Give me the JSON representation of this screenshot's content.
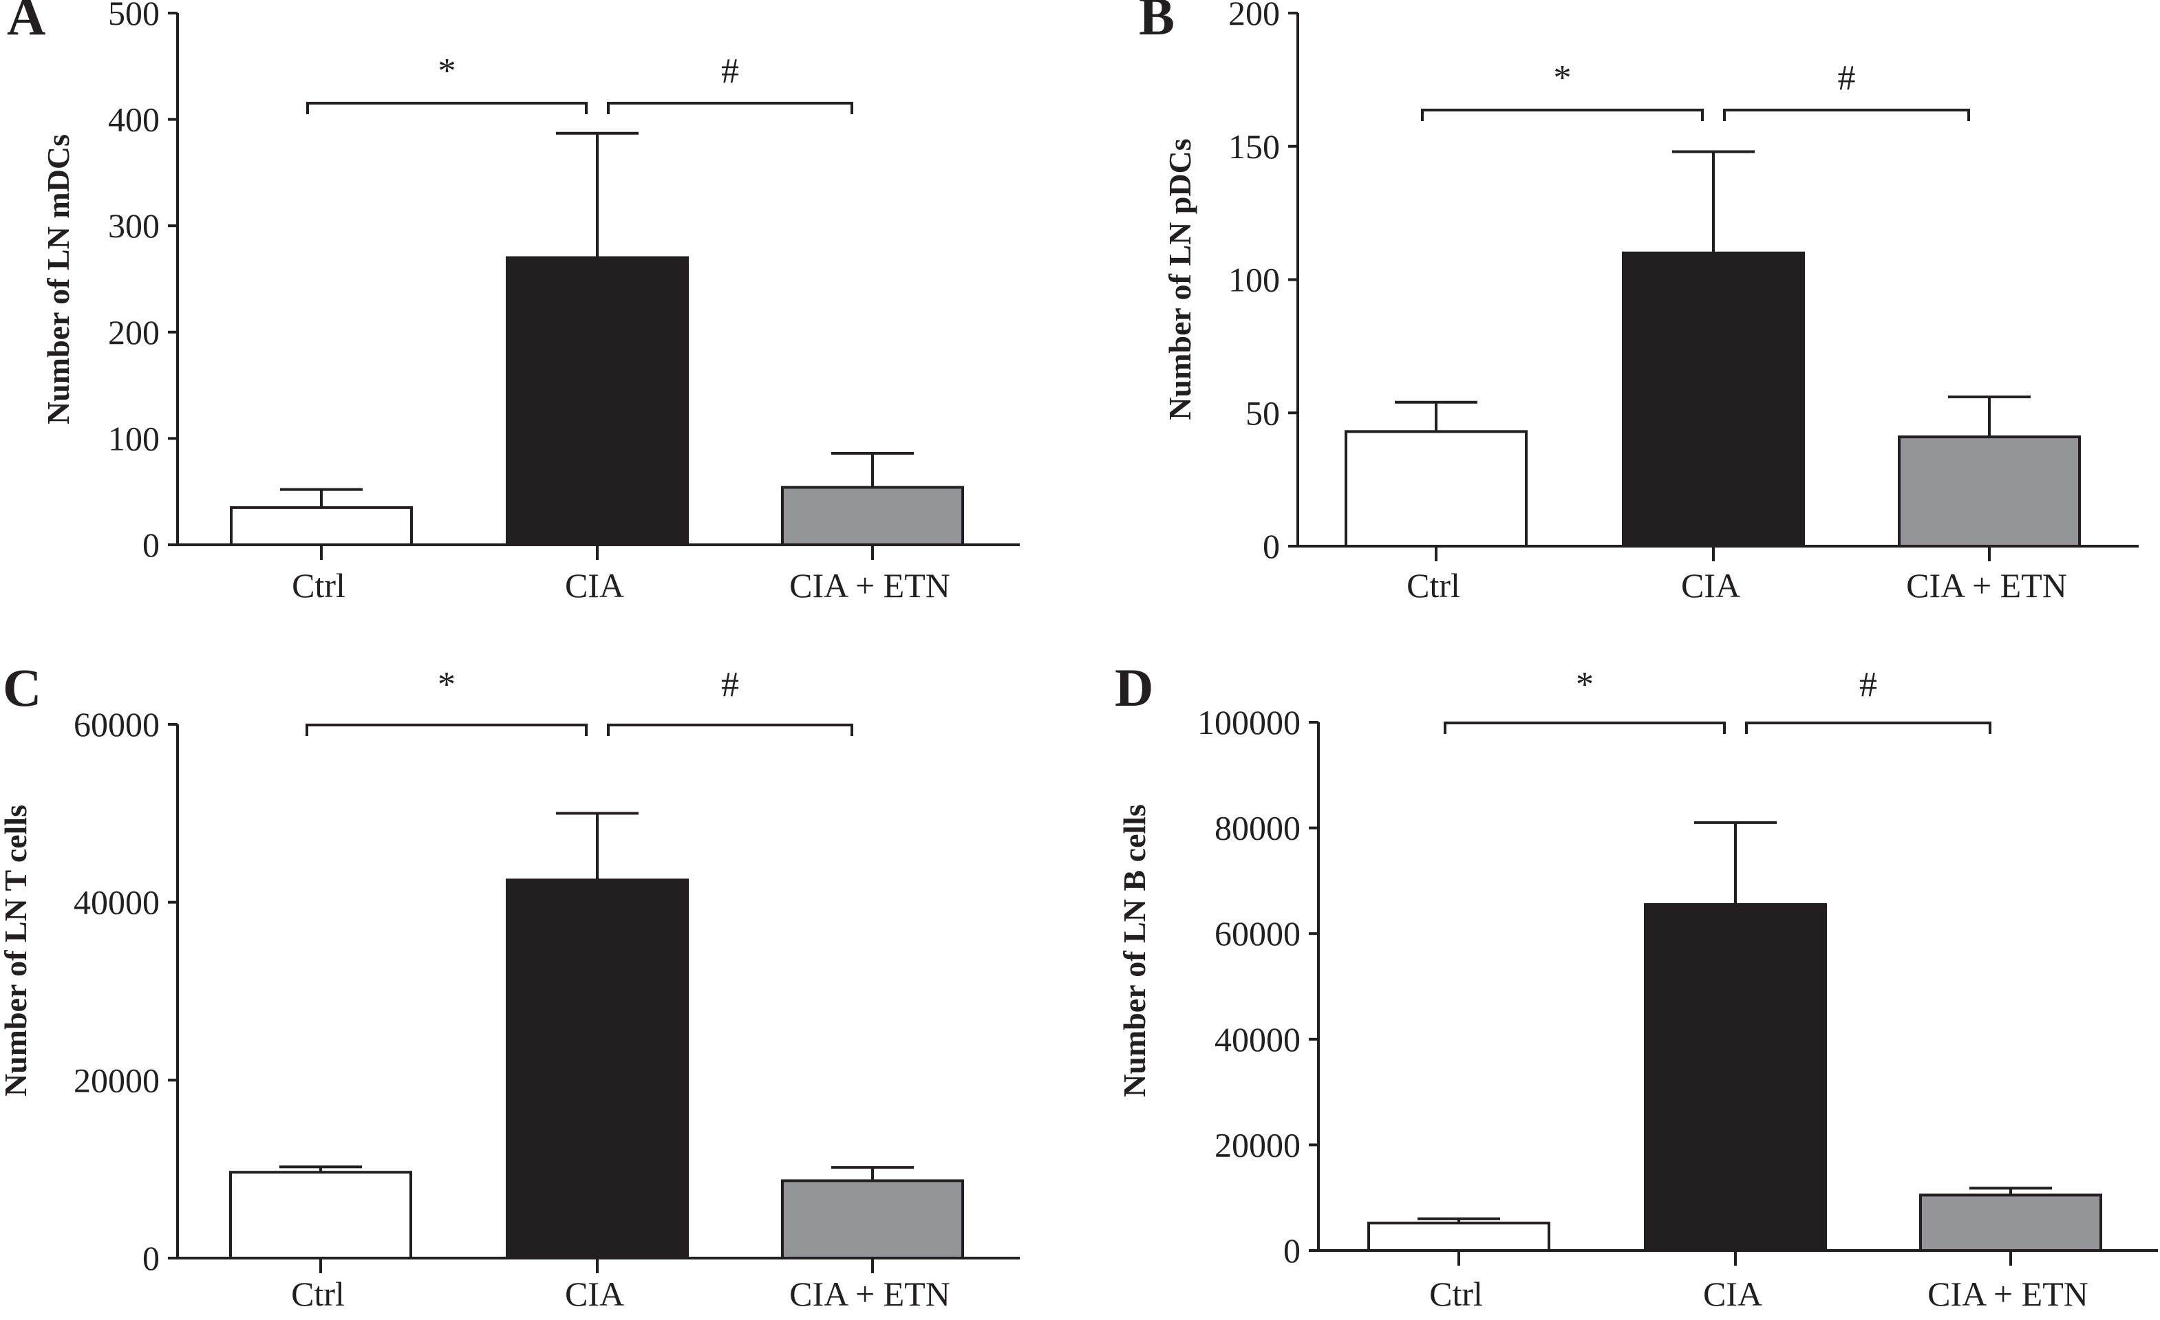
{
  "chart_data": [
    {
      "panel": "A",
      "type": "bar",
      "title": "",
      "ylabel": "Number of LN mDCs",
      "xlabel": "",
      "categories": [
        "Ctrl",
        "CIA",
        "CIA + ETN"
      ],
      "values": [
        35,
        270,
        54
      ],
      "error_upper": [
        17,
        117,
        32
      ],
      "bar_colors": [
        "#ffffff",
        "#231f20",
        "#939598"
      ],
      "ylim": [
        0,
        500
      ],
      "yticks": [
        0,
        100,
        200,
        300,
        400,
        500
      ],
      "ytick_labels": [
        "0",
        "100",
        "200",
        "300",
        "400",
        "500"
      ],
      "grid": false,
      "annotations": [
        {
          "from": "Ctrl",
          "to": "CIA",
          "symbol": "*"
        },
        {
          "from": "CIA",
          "to": "CIA + ETN",
          "symbol": "#"
        }
      ]
    },
    {
      "panel": "B",
      "type": "bar",
      "title": "",
      "ylabel": "Number of LN pDCs",
      "xlabel": "",
      "categories": [
        "Ctrl",
        "CIA",
        "CIA + ETN"
      ],
      "values": [
        43,
        110,
        41
      ],
      "error_upper": [
        11,
        38,
        15
      ],
      "bar_colors": [
        "#ffffff",
        "#231f20",
        "#939598"
      ],
      "ylim": [
        0,
        200
      ],
      "yticks": [
        0,
        50,
        100,
        150,
        200
      ],
      "ytick_labels": [
        "0",
        "50",
        "100",
        "150",
        "200"
      ],
      "grid": false,
      "annotations": [
        {
          "from": "Ctrl",
          "to": "CIA",
          "symbol": "*"
        },
        {
          "from": "CIA",
          "to": "CIA + ETN",
          "symbol": "#"
        }
      ]
    },
    {
      "panel": "C",
      "type": "bar",
      "title": "",
      "ylabel": "Number of LN T cells",
      "xlabel": "",
      "categories": [
        "Ctrl",
        "CIA",
        "CIA + ETN"
      ],
      "values": [
        9650,
        42500,
        8700
      ],
      "error_upper": [
        600,
        7500,
        1500
      ],
      "bar_colors": [
        "#ffffff",
        "#231f20",
        "#939598"
      ],
      "ylim": [
        0,
        60000
      ],
      "yticks": [
        0,
        20000,
        40000,
        60000
      ],
      "ytick_labels": [
        "0",
        "20000",
        "40000",
        "60000"
      ],
      "grid": false,
      "annotations": [
        {
          "from": "Ctrl",
          "to": "CIA",
          "symbol": "*"
        },
        {
          "from": "CIA",
          "to": "CIA + ETN",
          "symbol": "#"
        }
      ]
    },
    {
      "panel": "D",
      "type": "bar",
      "title": "",
      "ylabel": "Number of LN B cells",
      "xlabel": "",
      "categories": [
        "Ctrl",
        "CIA",
        "CIA + ETN"
      ],
      "values": [
        5200,
        65500,
        10500
      ],
      "error_upper": [
        800,
        15500,
        1300
      ],
      "bar_colors": [
        "#ffffff",
        "#231f20",
        "#939598"
      ],
      "ylim": [
        0,
        100000
      ],
      "yticks": [
        0,
        20000,
        40000,
        60000,
        80000,
        100000
      ],
      "ytick_labels": [
        "0",
        "20000",
        "40000",
        "60000",
        "80000",
        "100000"
      ],
      "grid": false,
      "annotations": [
        {
          "from": "Ctrl",
          "to": "CIA",
          "symbol": "*"
        },
        {
          "from": "CIA",
          "to": "CIA + ETN",
          "symbol": "#"
        }
      ]
    }
  ]
}
